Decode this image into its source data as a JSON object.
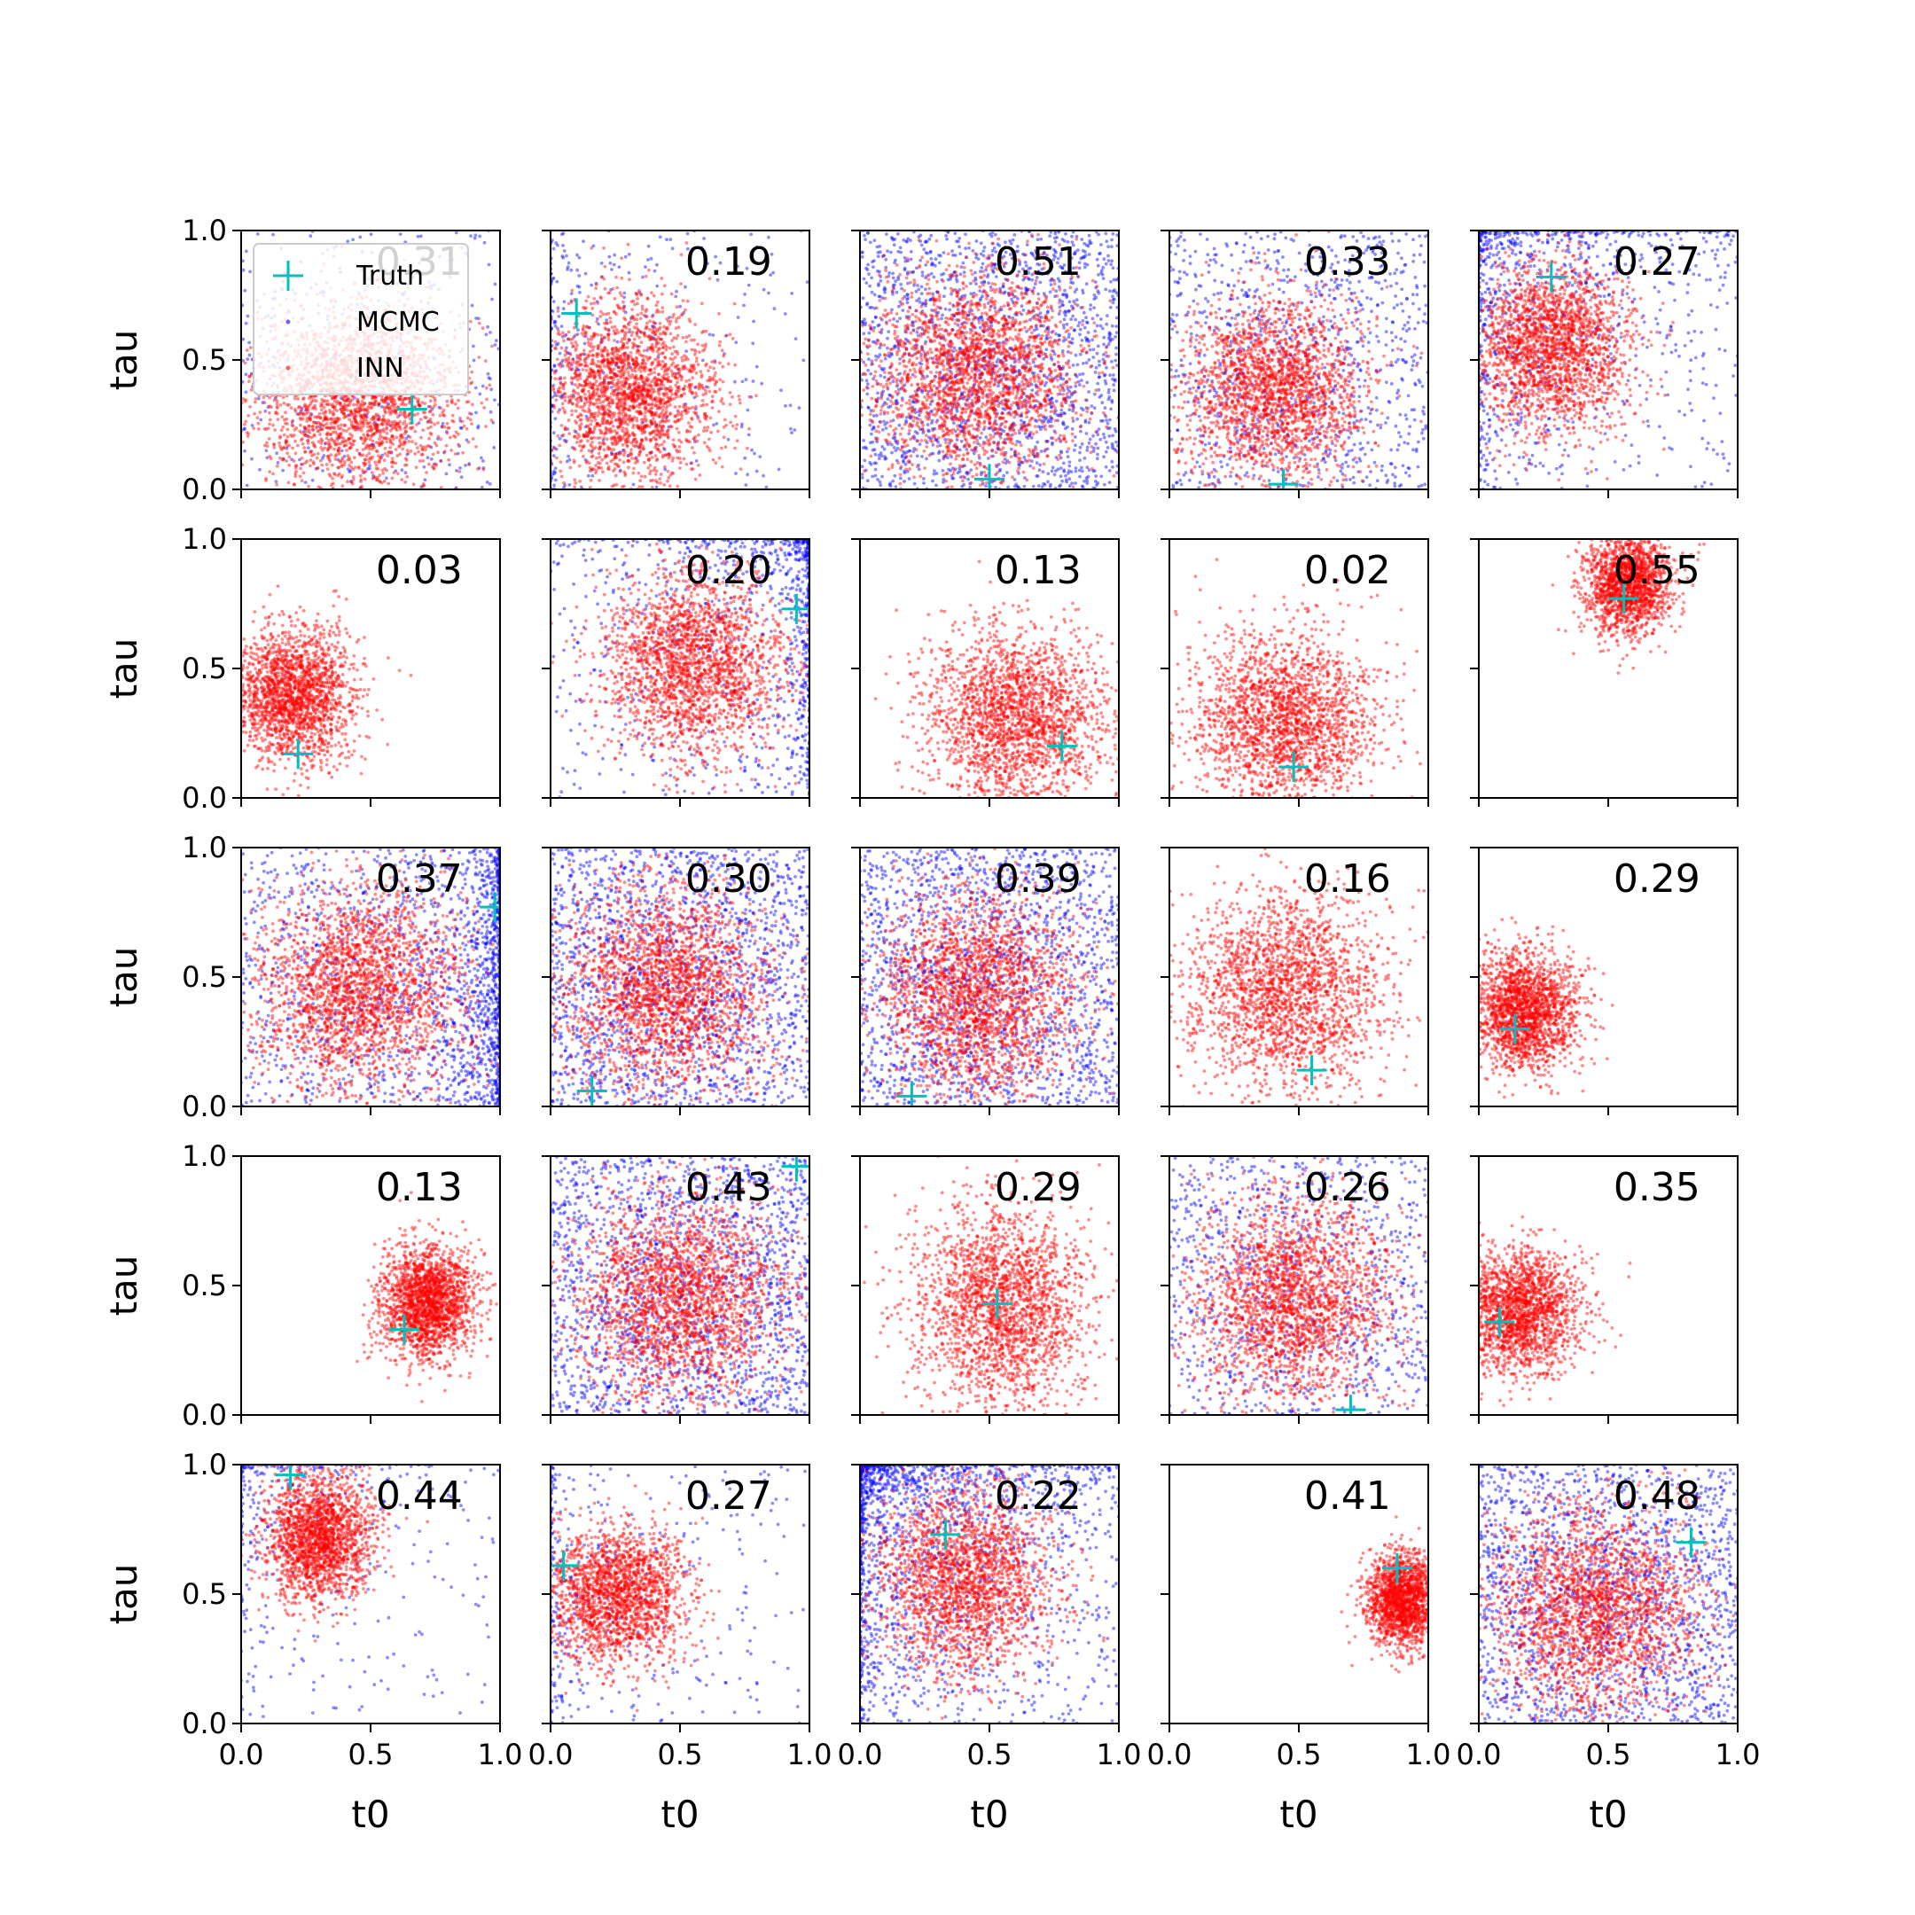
{
  "figure": {
    "legend": {
      "placement": "upper-left of first panel",
      "entries": [
        {
          "label": "Truth",
          "marker": "plus",
          "color": "#00bfbf"
        },
        {
          "label": "MCMC",
          "marker": "dot",
          "color": "#0000ff"
        },
        {
          "label": "INN",
          "marker": "dot",
          "color": "#ff0000"
        }
      ]
    },
    "colors": {
      "mcmc": "#0000ff",
      "inn": "#ff0000",
      "truth": "#00bfbf",
      "axes": "#000000"
    }
  },
  "chart_data": [
    {
      "type": "scatter",
      "row": 0,
      "col": 0,
      "score": "0.31",
      "xlabel": "",
      "ylabel": "tau",
      "xlim": [
        0,
        1
      ],
      "ylim": [
        0,
        1
      ],
      "x_ticks": [],
      "y_ticks": [
        "0.0",
        "0.5",
        "1.0"
      ],
      "truth": [
        0.66,
        0.31
      ],
      "inn": {
        "mean": [
          0.45,
          0.35
        ],
        "sd": [
          0.2,
          0.18
        ],
        "n": 2200
      },
      "mcmc": {
        "spread": "broad",
        "weight": "light"
      }
    },
    {
      "type": "scatter",
      "row": 0,
      "col": 1,
      "score": "0.19",
      "xlabel": "",
      "ylabel": "",
      "xlim": [
        0,
        1
      ],
      "ylim": [
        0,
        1
      ],
      "x_ticks": [],
      "y_ticks": [],
      "truth": [
        0.1,
        0.68
      ],
      "inn": {
        "mean": [
          0.3,
          0.37
        ],
        "sd": [
          0.17,
          0.18
        ],
        "n": 2200
      },
      "mcmc": {
        "spread": "left edge",
        "weight": "light"
      }
    },
    {
      "type": "scatter",
      "row": 0,
      "col": 2,
      "score": "0.51",
      "xlabel": "",
      "ylabel": "",
      "xlim": [
        0,
        1
      ],
      "ylim": [
        0,
        1
      ],
      "x_ticks": [],
      "y_ticks": [],
      "truth": [
        0.5,
        0.04
      ],
      "inn": {
        "mean": [
          0.45,
          0.45
        ],
        "sd": [
          0.2,
          0.2
        ],
        "n": 2400
      },
      "mcmc": {
        "spread": "uniform",
        "weight": "heavy"
      }
    },
    {
      "type": "scatter",
      "row": 0,
      "col": 3,
      "score": "0.33",
      "xlabel": "",
      "ylabel": "",
      "xlim": [
        0,
        1
      ],
      "ylim": [
        0,
        1
      ],
      "x_ticks": [],
      "y_ticks": [],
      "truth": [
        0.44,
        0.02
      ],
      "inn": {
        "mean": [
          0.4,
          0.38
        ],
        "sd": [
          0.18,
          0.18
        ],
        "n": 2200
      },
      "mcmc": {
        "spread": "uniform",
        "weight": "medium"
      }
    },
    {
      "type": "scatter",
      "row": 0,
      "col": 4,
      "score": "0.27",
      "xlabel": "",
      "ylabel": "",
      "xlim": [
        0,
        1
      ],
      "ylim": [
        0,
        1
      ],
      "x_ticks": [],
      "y_ticks": [],
      "truth": [
        0.28,
        0.82
      ],
      "inn": {
        "mean": [
          0.28,
          0.55
        ],
        "sd": [
          0.15,
          0.16
        ],
        "n": 2200
      },
      "mcmc": {
        "spread": "top-left",
        "weight": "medium"
      }
    },
    {
      "type": "scatter",
      "row": 1,
      "col": 0,
      "score": "0.03",
      "xlabel": "",
      "ylabel": "tau",
      "xlim": [
        0,
        1
      ],
      "ylim": [
        0,
        1
      ],
      "x_ticks": [],
      "y_ticks": [
        "0.0",
        "0.5",
        "1.0"
      ],
      "truth": [
        0.22,
        0.17
      ],
      "inn": {
        "mean": [
          0.2,
          0.4
        ],
        "sd": [
          0.12,
          0.13
        ],
        "n": 2000
      },
      "mcmc": {
        "spread": "none",
        "weight": "none"
      }
    },
    {
      "type": "scatter",
      "row": 1,
      "col": 1,
      "score": "0.20",
      "xlabel": "",
      "ylabel": "",
      "xlim": [
        0,
        1
      ],
      "ylim": [
        0,
        1
      ],
      "x_ticks": [],
      "y_ticks": [],
      "truth": [
        0.95,
        0.73
      ],
      "inn": {
        "mean": [
          0.55,
          0.52
        ],
        "sd": [
          0.17,
          0.18
        ],
        "n": 2200
      },
      "mcmc": {
        "spread": "top-right",
        "weight": "medium"
      }
    },
    {
      "type": "scatter",
      "row": 1,
      "col": 2,
      "score": "0.13",
      "xlabel": "",
      "ylabel": "",
      "xlim": [
        0,
        1
      ],
      "ylim": [
        0,
        1
      ],
      "x_ticks": [],
      "y_ticks": [],
      "truth": [
        0.78,
        0.2
      ],
      "inn": {
        "mean": [
          0.6,
          0.3
        ],
        "sd": [
          0.18,
          0.17
        ],
        "n": 2200
      },
      "mcmc": {
        "spread": "none",
        "weight": "none"
      }
    },
    {
      "type": "scatter",
      "row": 1,
      "col": 3,
      "score": "0.02",
      "xlabel": "",
      "ylabel": "",
      "xlim": [
        0,
        1
      ],
      "ylim": [
        0,
        1
      ],
      "x_ticks": [],
      "y_ticks": [],
      "truth": [
        0.48,
        0.12
      ],
      "inn": {
        "mean": [
          0.45,
          0.3
        ],
        "sd": [
          0.18,
          0.17
        ],
        "n": 2200
      },
      "mcmc": {
        "spread": "none",
        "weight": "none"
      }
    },
    {
      "type": "scatter",
      "row": 1,
      "col": 4,
      "score": "0.55",
      "xlabel": "",
      "ylabel": "",
      "xlim": [
        0,
        1
      ],
      "ylim": [
        0,
        1
      ],
      "x_ticks": [],
      "y_ticks": [],
      "truth": [
        0.56,
        0.77
      ],
      "inn": {
        "mean": [
          0.58,
          0.83
        ],
        "sd": [
          0.08,
          0.1
        ],
        "n": 1800
      },
      "mcmc": {
        "spread": "none",
        "weight": "none"
      }
    },
    {
      "type": "scatter",
      "row": 2,
      "col": 0,
      "score": "0.37",
      "xlabel": "",
      "ylabel": "tau",
      "xlim": [
        0,
        1
      ],
      "ylim": [
        0,
        1
      ],
      "x_ticks": [],
      "y_ticks": [
        "0.0",
        "0.5",
        "1.0"
      ],
      "truth": [
        0.98,
        0.77
      ],
      "inn": {
        "mean": [
          0.45,
          0.45
        ],
        "sd": [
          0.2,
          0.2
        ],
        "n": 2400
      },
      "mcmc": {
        "spread": "right edge",
        "weight": "heavy"
      }
    },
    {
      "type": "scatter",
      "row": 2,
      "col": 1,
      "score": "0.30",
      "xlabel": "",
      "ylabel": "",
      "xlim": [
        0,
        1
      ],
      "ylim": [
        0,
        1
      ],
      "x_ticks": [],
      "y_ticks": [],
      "truth": [
        0.16,
        0.06
      ],
      "inn": {
        "mean": [
          0.45,
          0.45
        ],
        "sd": [
          0.2,
          0.2
        ],
        "n": 2400
      },
      "mcmc": {
        "spread": "uniform",
        "weight": "heavy"
      }
    },
    {
      "type": "scatter",
      "row": 2,
      "col": 2,
      "score": "0.39",
      "xlabel": "",
      "ylabel": "",
      "xlim": [
        0,
        1
      ],
      "ylim": [
        0,
        1
      ],
      "x_ticks": [],
      "y_ticks": [],
      "truth": [
        0.2,
        0.04
      ],
      "inn": {
        "mean": [
          0.45,
          0.42
        ],
        "sd": [
          0.2,
          0.2
        ],
        "n": 2400
      },
      "mcmc": {
        "spread": "uniform",
        "weight": "heavy"
      }
    },
    {
      "type": "scatter",
      "row": 2,
      "col": 3,
      "score": "0.16",
      "xlabel": "",
      "ylabel": "",
      "xlim": [
        0,
        1
      ],
      "ylim": [
        0,
        1
      ],
      "x_ticks": [],
      "y_ticks": [],
      "truth": [
        0.55,
        0.14
      ],
      "inn": {
        "mean": [
          0.45,
          0.45
        ],
        "sd": [
          0.19,
          0.19
        ],
        "n": 2200
      },
      "mcmc": {
        "spread": "none",
        "weight": "none"
      }
    },
    {
      "type": "scatter",
      "row": 2,
      "col": 4,
      "score": "0.29",
      "xlabel": "",
      "ylabel": "",
      "xlim": [
        0,
        1
      ],
      "ylim": [
        0,
        1
      ],
      "x_ticks": [],
      "y_ticks": [],
      "truth": [
        0.14,
        0.3
      ],
      "inn": {
        "mean": [
          0.18,
          0.37
        ],
        "sd": [
          0.1,
          0.11
        ],
        "n": 2000
      },
      "mcmc": {
        "spread": "none",
        "weight": "none"
      }
    },
    {
      "type": "scatter",
      "row": 3,
      "col": 0,
      "score": "0.13",
      "xlabel": "",
      "ylabel": "tau",
      "xlim": [
        0,
        1
      ],
      "ylim": [
        0,
        1
      ],
      "x_ticks": [],
      "y_ticks": [
        "0.0",
        "0.5",
        "1.0"
      ],
      "truth": [
        0.63,
        0.33
      ],
      "inn": {
        "mean": [
          0.72,
          0.43
        ],
        "sd": [
          0.09,
          0.11
        ],
        "n": 2000
      },
      "mcmc": {
        "spread": "none",
        "weight": "none"
      }
    },
    {
      "type": "scatter",
      "row": 3,
      "col": 1,
      "score": "0.43",
      "xlabel": "",
      "ylabel": "",
      "xlim": [
        0,
        1
      ],
      "ylim": [
        0,
        1
      ],
      "x_ticks": [],
      "y_ticks": [],
      "truth": [
        0.95,
        0.96
      ],
      "inn": {
        "mean": [
          0.5,
          0.45
        ],
        "sd": [
          0.2,
          0.2
        ],
        "n": 2400
      },
      "mcmc": {
        "spread": "uniform",
        "weight": "heavy"
      }
    },
    {
      "type": "scatter",
      "row": 3,
      "col": 2,
      "score": "0.29",
      "xlabel": "",
      "ylabel": "",
      "xlim": [
        0,
        1
      ],
      "ylim": [
        0,
        1
      ],
      "x_ticks": [],
      "y_ticks": [],
      "truth": [
        0.53,
        0.43
      ],
      "inn": {
        "mean": [
          0.55,
          0.42
        ],
        "sd": [
          0.17,
          0.2
        ],
        "n": 2200
      },
      "mcmc": {
        "spread": "none",
        "weight": "none"
      }
    },
    {
      "type": "scatter",
      "row": 3,
      "col": 3,
      "score": "0.26",
      "xlabel": "",
      "ylabel": "",
      "xlim": [
        0,
        1
      ],
      "ylim": [
        0,
        1
      ],
      "x_ticks": [],
      "y_ticks": [],
      "truth": [
        0.7,
        0.02
      ],
      "inn": {
        "mean": [
          0.48,
          0.45
        ],
        "sd": [
          0.19,
          0.2
        ],
        "n": 2300
      },
      "mcmc": {
        "spread": "uniform",
        "weight": "medium"
      }
    },
    {
      "type": "scatter",
      "row": 3,
      "col": 4,
      "score": "0.35",
      "xlabel": "",
      "ylabel": "",
      "xlim": [
        0,
        1
      ],
      "ylim": [
        0,
        1
      ],
      "x_ticks": [],
      "y_ticks": [],
      "truth": [
        0.08,
        0.36
      ],
      "inn": {
        "mean": [
          0.15,
          0.4
        ],
        "sd": [
          0.12,
          0.12
        ],
        "n": 2000
      },
      "mcmc": {
        "spread": "none",
        "weight": "none"
      }
    },
    {
      "type": "scatter",
      "row": 4,
      "col": 0,
      "score": "0.44",
      "xlabel": "t0",
      "ylabel": "tau",
      "xlim": [
        0,
        1
      ],
      "ylim": [
        0,
        1
      ],
      "x_ticks": [
        "0.0",
        "0.5",
        "1.0"
      ],
      "y_ticks": [
        "0.0",
        "0.5",
        "1.0"
      ],
      "truth": [
        0.19,
        0.96
      ],
      "inn": {
        "mean": [
          0.3,
          0.72
        ],
        "sd": [
          0.1,
          0.12
        ],
        "n": 2000
      },
      "mcmc": {
        "spread": "top-left",
        "weight": "light"
      }
    },
    {
      "type": "scatter",
      "row": 4,
      "col": 1,
      "score": "0.27",
      "xlabel": "t0",
      "ylabel": "",
      "xlim": [
        0,
        1
      ],
      "ylim": [
        0,
        1
      ],
      "x_ticks": [
        "0.0",
        "0.5",
        "1.0"
      ],
      "y_ticks": [],
      "truth": [
        0.05,
        0.61
      ],
      "inn": {
        "mean": [
          0.25,
          0.5
        ],
        "sd": [
          0.14,
          0.13
        ],
        "n": 2000
      },
      "mcmc": {
        "spread": "left edge",
        "weight": "light"
      }
    },
    {
      "type": "scatter",
      "row": 4,
      "col": 2,
      "score": "0.22",
      "xlabel": "t0",
      "ylabel": "",
      "xlim": [
        0,
        1
      ],
      "ylim": [
        0,
        1
      ],
      "x_ticks": [
        "0.0",
        "0.5",
        "1.0"
      ],
      "y_ticks": [],
      "truth": [
        0.33,
        0.73
      ],
      "inn": {
        "mean": [
          0.4,
          0.55
        ],
        "sd": [
          0.17,
          0.18
        ],
        "n": 2200
      },
      "mcmc": {
        "spread": "top-left",
        "weight": "heavy"
      }
    },
    {
      "type": "scatter",
      "row": 4,
      "col": 3,
      "score": "0.41",
      "xlabel": "t0",
      "ylabel": "",
      "xlim": [
        0,
        1
      ],
      "ylim": [
        0,
        1
      ],
      "x_ticks": [
        "0.0",
        "0.5",
        "1.0"
      ],
      "y_ticks": [],
      "truth": [
        0.88,
        0.6
      ],
      "inn": {
        "mean": [
          0.9,
          0.48
        ],
        "sd": [
          0.07,
          0.09
        ],
        "n": 1800
      },
      "mcmc": {
        "spread": "none",
        "weight": "none"
      }
    },
    {
      "type": "scatter",
      "row": 4,
      "col": 4,
      "score": "0.48",
      "xlabel": "t0",
      "ylabel": "",
      "xlim": [
        0,
        1
      ],
      "ylim": [
        0,
        1
      ],
      "x_ticks": [
        "0.0",
        "0.5",
        "1.0"
      ],
      "y_ticks": [],
      "truth": [
        0.82,
        0.7
      ],
      "inn": {
        "mean": [
          0.45,
          0.45
        ],
        "sd": [
          0.2,
          0.2
        ],
        "n": 2400
      },
      "mcmc": {
        "spread": "uniform",
        "weight": "heavy"
      }
    }
  ]
}
